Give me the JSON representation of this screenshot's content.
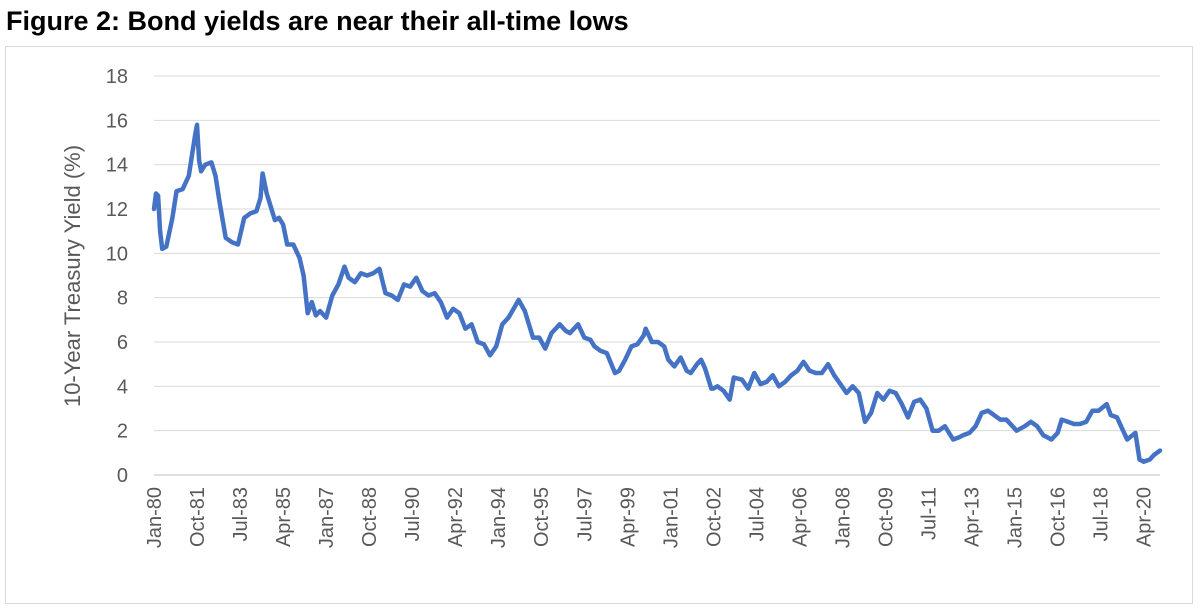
{
  "title": "Figure 2: Bond yields are near their all-time lows",
  "chart_data": {
    "type": "line",
    "title": "Figure 2: Bond yields are near their all-time lows",
    "xlabel": "",
    "ylabel": "10-Year Treasury Yield (%)",
    "ylim": [
      0,
      18
    ],
    "yticks": [
      0,
      2,
      4,
      6,
      8,
      10,
      12,
      14,
      16,
      18
    ],
    "xlim": [
      "Jan-80",
      "Dec-20"
    ],
    "xticks": [
      "Jan-80",
      "Oct-81",
      "Jul-83",
      "Apr-85",
      "Jan-87",
      "Oct-88",
      "Jul-90",
      "Apr-92",
      "Jan-94",
      "Oct-95",
      "Jul-97",
      "Apr-99",
      "Jan-01",
      "Oct-02",
      "Jul-04",
      "Apr-06",
      "Jan-08",
      "Oct-09",
      "Jul-11",
      "Apr-13",
      "Jan-15",
      "Oct-16",
      "Jul-18",
      "Apr-20"
    ],
    "grid": "horizontal",
    "legend": "none",
    "series_color": "#4472C4",
    "series": [
      {
        "x": [
          "Jan-80",
          "Feb-80",
          "Mar-80",
          "Apr-80",
          "May-80",
          "Jul-80",
          "Oct-80",
          "Dec-80",
          "Mar-81",
          "Jun-81",
          "Sep-81",
          "Oct-81",
          "Nov-81",
          "Dec-81",
          "Feb-82",
          "May-82",
          "Jul-82",
          "Sep-82",
          "Dec-82",
          "Mar-83",
          "Jun-83",
          "Sep-83",
          "Dec-83",
          "Mar-84",
          "May-84",
          "Jun-84",
          "Aug-84",
          "Dec-84",
          "Feb-85",
          "Apr-85",
          "Jun-85",
          "Sep-85",
          "Dec-85",
          "Feb-86",
          "Apr-86",
          "Jun-86",
          "Aug-86",
          "Oct-86",
          "Jan-87",
          "Apr-87",
          "Jul-87",
          "Oct-87",
          "Dec-87",
          "Mar-88",
          "Jun-88",
          "Sep-88",
          "Dec-88",
          "Mar-89",
          "Jun-89",
          "Sep-89",
          "Dec-89",
          "Mar-90",
          "Jun-90",
          "Sep-90",
          "Dec-90",
          "Mar-91",
          "Jun-91",
          "Sep-91",
          "Dec-91",
          "Mar-92",
          "Jun-92",
          "Sep-92",
          "Dec-92",
          "Mar-93",
          "Jun-93",
          "Sep-93",
          "Dec-93",
          "Mar-94",
          "Jun-94",
          "Nov-94",
          "Feb-95",
          "Jun-95",
          "Sep-95",
          "Dec-95",
          "Mar-96",
          "Jul-96",
          "Oct-96",
          "Dec-96",
          "Apr-97",
          "Jul-97",
          "Oct-97",
          "Dec-97",
          "Mar-98",
          "Jun-98",
          "Oct-98",
          "Dec-98",
          "Mar-99",
          "Jun-99",
          "Sep-99",
          "Dec-99",
          "Jan-00",
          "Apr-00",
          "Jul-00",
          "Oct-00",
          "Dec-00",
          "Mar-01",
          "Jun-01",
          "Sep-01",
          "Nov-01",
          "Feb-02",
          "Apr-02",
          "Jun-02",
          "Sep-02",
          "Oct-02",
          "Dec-02",
          "Mar-03",
          "Jun-03",
          "Aug-03",
          "Dec-03",
          "Mar-04",
          "Jun-04",
          "Sep-04",
          "Dec-04",
          "Mar-05",
          "Jun-05",
          "Sep-05",
          "Dec-05",
          "Mar-06",
          "Jun-06",
          "Sep-06",
          "Dec-06",
          "Mar-07",
          "Jun-07",
          "Sep-07",
          "Dec-07",
          "Mar-08",
          "Jun-08",
          "Sep-08",
          "Dec-08",
          "Mar-09",
          "Jun-09",
          "Sep-09",
          "Dec-09",
          "Mar-10",
          "Jun-10",
          "Sep-10",
          "Dec-10",
          "Mar-11",
          "Jun-11",
          "Sep-11",
          "Dec-11",
          "Mar-12",
          "Jul-12",
          "Oct-12",
          "Dec-12",
          "Mar-13",
          "Jun-13",
          "Sep-13",
          "Dec-13",
          "Mar-14",
          "Jun-14",
          "Sep-14",
          "Dec-14",
          "Feb-15",
          "Jun-15",
          "Sep-15",
          "Dec-15",
          "Mar-16",
          "Jul-16",
          "Oct-16",
          "Dec-16",
          "Mar-17",
          "Jun-17",
          "Sep-17",
          "Dec-17",
          "Mar-18",
          "Jun-18",
          "Oct-18",
          "Dec-18",
          "Mar-19",
          "Jun-19",
          "Aug-19",
          "Dec-19",
          "Feb-20",
          "Apr-20",
          "Jul-20",
          "Sep-20",
          "Dec-20"
        ],
        "y": [
          12.0,
          12.7,
          12.6,
          11.0,
          10.2,
          10.3,
          11.6,
          12.8,
          12.9,
          13.5,
          15.3,
          15.8,
          14.2,
          13.7,
          14.0,
          14.1,
          13.5,
          12.3,
          10.7,
          10.5,
          10.4,
          11.6,
          11.8,
          11.9,
          12.5,
          13.6,
          12.7,
          11.5,
          11.6,
          11.3,
          10.4,
          10.4,
          9.8,
          9.0,
          7.3,
          7.8,
          7.2,
          7.4,
          7.1,
          8.1,
          8.6,
          9.4,
          8.9,
          8.7,
          9.1,
          9.0,
          9.1,
          9.3,
          8.2,
          8.1,
          7.9,
          8.6,
          8.5,
          8.9,
          8.3,
          8.1,
          8.2,
          7.8,
          7.1,
          7.5,
          7.3,
          6.6,
          6.8,
          6.0,
          5.9,
          5.4,
          5.8,
          6.8,
          7.1,
          7.9,
          7.4,
          6.2,
          6.2,
          5.7,
          6.4,
          6.8,
          6.5,
          6.4,
          6.8,
          6.2,
          6.1,
          5.8,
          5.6,
          5.5,
          4.6,
          4.7,
          5.2,
          5.8,
          5.9,
          6.3,
          6.6,
          6.0,
          6.0,
          5.8,
          5.2,
          4.9,
          5.3,
          4.7,
          4.6,
          5.0,
          5.2,
          4.8,
          3.9,
          3.9,
          4.0,
          3.8,
          3.4,
          4.4,
          4.3,
          3.9,
          4.6,
          4.1,
          4.2,
          4.5,
          4.0,
          4.2,
          4.5,
          4.7,
          5.1,
          4.7,
          4.6,
          4.6,
          5.0,
          4.5,
          4.1,
          3.7,
          4.0,
          3.7,
          2.4,
          2.8,
          3.7,
          3.4,
          3.8,
          3.7,
          3.2,
          2.6,
          3.3,
          3.4,
          3.0,
          2.0,
          2.0,
          2.2,
          1.6,
          1.7,
          1.8,
          1.9,
          2.2,
          2.8,
          2.9,
          2.7,
          2.5,
          2.5,
          2.2,
          2.0,
          2.2,
          2.4,
          2.2,
          1.8,
          1.6,
          1.9,
          2.5,
          2.4,
          2.3,
          2.3,
          2.4,
          2.9,
          2.9,
          3.2,
          2.7,
          2.6,
          2.0,
          1.6,
          1.9,
          0.7,
          0.6,
          0.7,
          0.9,
          1.1
        ]
      }
    ]
  }
}
